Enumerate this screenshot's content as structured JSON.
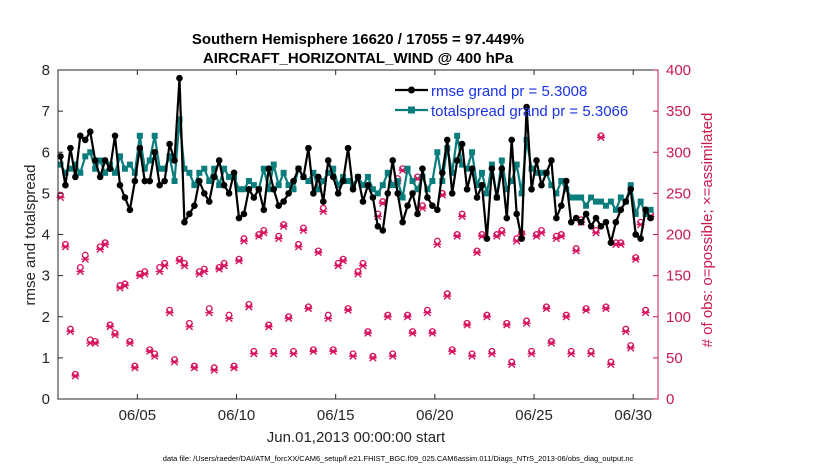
{
  "chart_data": {
    "type": "line",
    "title": "Southern Hemisphere 16620 / 17055 = 97.449%",
    "subtitle": "AIRCRAFT_HORIZONTAL_WIND @ 400 hPa",
    "xlabel": "Jun.01,2013 00:00:00 start",
    "ylabel_left": "rmse and totalspread",
    "ylabel_right": "# of obs: o=possible; ×=assimilated",
    "footer": "data file: /Users/raeder/DAI/ATM_forcXX/CAM6_setup/f.e21.FHIST_BGC.f09_025.CAM6assim.011/Diags_NTrS_2013-06/obs_diag_output.nc",
    "xlim": [
      1.0,
      31.25
    ],
    "ylim_left": [
      0,
      8
    ],
    "ylim_right": [
      0,
      400
    ],
    "left_ticks": [
      0,
      1,
      2,
      3,
      4,
      5,
      6,
      7,
      8
    ],
    "right_ticks": [
      0,
      50,
      100,
      150,
      200,
      250,
      300,
      350,
      400
    ],
    "x_ticks": [
      {
        "value": 5,
        "label": "06/05"
      },
      {
        "value": 10,
        "label": "06/10"
      },
      {
        "value": 15,
        "label": "06/15"
      },
      {
        "value": 20,
        "label": "06/20"
      },
      {
        "value": 25,
        "label": "06/25"
      },
      {
        "value": 30,
        "label": "06/30"
      }
    ],
    "colors": {
      "rmse": "#000000",
      "spread": "#0b7d7d",
      "obs": "#d6145f",
      "right_axis": "#c8194f",
      "legend_text": "#1a33e6"
    },
    "series": [
      {
        "name": "rmse grand pr = 5.3008",
        "style": "black-line-star",
        "x": [
          1.125,
          1.375,
          1.625,
          1.875,
          2.125,
          2.375,
          2.625,
          2.875,
          3.125,
          3.375,
          3.625,
          3.875,
          4.125,
          4.375,
          4.625,
          4.875,
          5.125,
          5.375,
          5.625,
          5.875,
          6.125,
          6.375,
          6.625,
          6.875,
          7.125,
          7.375,
          7.625,
          7.875,
          8.125,
          8.375,
          8.625,
          8.875,
          9.125,
          9.375,
          9.625,
          9.875,
          10.125,
          10.375,
          10.625,
          10.875,
          11.125,
          11.375,
          11.625,
          11.875,
          12.125,
          12.375,
          12.625,
          12.875,
          13.125,
          13.375,
          13.625,
          13.875,
          14.125,
          14.375,
          14.625,
          14.875,
          15.125,
          15.375,
          15.625,
          15.875,
          16.125,
          16.375,
          16.625,
          16.875,
          17.125,
          17.375,
          17.625,
          17.875,
          18.125,
          18.375,
          18.625,
          18.875,
          19.125,
          19.375,
          19.625,
          19.875,
          20.125,
          20.375,
          20.625,
          20.875,
          21.125,
          21.375,
          21.625,
          21.875,
          22.125,
          22.375,
          22.625,
          22.875,
          23.125,
          23.375,
          23.625,
          23.875,
          24.125,
          24.375,
          24.625,
          24.875,
          25.125,
          25.375,
          25.625,
          25.875,
          26.125,
          26.375,
          26.625,
          26.875,
          27.125,
          27.375,
          27.625,
          27.875,
          28.125,
          28.375,
          28.625,
          28.875,
          29.125,
          29.375,
          29.625,
          29.875,
          30.125,
          30.375,
          30.625,
          30.875
        ],
        "values": [
          5.9,
          5.2,
          6.1,
          5.4,
          6.4,
          6.3,
          6.5,
          5.8,
          5.4,
          5.8,
          5.6,
          6.4,
          5.2,
          4.9,
          4.6,
          5.3,
          6.1,
          5.3,
          5.3,
          6.0,
          5.2,
          5.3,
          6.2,
          5.8,
          7.8,
          4.3,
          4.5,
          4.7,
          5.3,
          5.0,
          4.8,
          5.4,
          5.8,
          5.2,
          5.0,
          5.5,
          4.4,
          4.5,
          5.1,
          4.9,
          5.1,
          4.6,
          5.6,
          5.1,
          4.7,
          4.8,
          5.0,
          5.3,
          5.6,
          5.4,
          6.1,
          5.0,
          5.4,
          4.8,
          5.8,
          5.4,
          5.0,
          5.3,
          6.1,
          5.1,
          5.4,
          4.8,
          5.2,
          4.9,
          4.2,
          4.1,
          5.0,
          5.8,
          5.0,
          4.3,
          4.7,
          5.0,
          4.5,
          5.6,
          4.9,
          4.7,
          4.6,
          5.5,
          6.3,
          5.0,
          5.8,
          6.2,
          5.1,
          5.6,
          4.9,
          5.2,
          3.9,
          5.6,
          4.9,
          5.6,
          4.4,
          6.3,
          4.5,
          3.9,
          7.1,
          5.1,
          5.8,
          5.2,
          5.5,
          5.8,
          4.4,
          4.7,
          5.3,
          4.3,
          4.4,
          4.3,
          4.5,
          4.2,
          4.4,
          4.2,
          4.3,
          3.8,
          4.3,
          4.6,
          4.8,
          5.1,
          4.0,
          3.9,
          4.6,
          4.4
        ]
      },
      {
        "name": "totalspread grand pr = 5.3066",
        "style": "teal-line-square",
        "x": [
          1.125,
          1.375,
          1.625,
          1.875,
          2.125,
          2.375,
          2.625,
          2.875,
          3.125,
          3.375,
          3.625,
          3.875,
          4.125,
          4.375,
          4.625,
          4.875,
          5.125,
          5.375,
          5.625,
          5.875,
          6.125,
          6.375,
          6.625,
          6.875,
          7.125,
          7.375,
          7.625,
          7.875,
          8.125,
          8.375,
          8.625,
          8.875,
          9.125,
          9.375,
          9.625,
          9.875,
          10.125,
          10.375,
          10.625,
          10.875,
          11.125,
          11.375,
          11.625,
          11.875,
          12.125,
          12.375,
          12.625,
          12.875,
          13.125,
          13.375,
          13.625,
          13.875,
          14.125,
          14.375,
          14.625,
          14.875,
          15.125,
          15.375,
          15.625,
          15.875,
          16.125,
          16.375,
          16.625,
          16.875,
          17.125,
          17.375,
          17.625,
          17.875,
          18.125,
          18.375,
          18.625,
          18.875,
          19.125,
          19.375,
          19.625,
          19.875,
          20.125,
          20.375,
          20.625,
          20.875,
          21.125,
          21.375,
          21.625,
          21.875,
          22.125,
          22.375,
          22.625,
          22.875,
          23.125,
          23.375,
          23.625,
          23.875,
          24.125,
          24.375,
          24.625,
          24.875,
          25.125,
          25.375,
          25.625,
          25.875,
          26.125,
          26.375,
          26.625,
          26.875,
          27.125,
          27.375,
          27.625,
          27.875,
          28.125,
          28.375,
          28.625,
          28.875,
          29.125,
          29.375,
          29.625,
          29.875,
          30.125,
          30.375,
          30.625,
          30.875
        ],
        "values": [
          5.7,
          5.5,
          5.6,
          5.7,
          5.5,
          5.9,
          6.0,
          5.6,
          5.8,
          5.5,
          5.7,
          5.5,
          5.9,
          5.6,
          5.7,
          5.5,
          6.4,
          5.6,
          5.8,
          6.4,
          5.6,
          5.6,
          5.9,
          5.3,
          6.8,
          5.6,
          5.5,
          5.2,
          5.5,
          5.6,
          5.3,
          5.6,
          5.2,
          5.6,
          5.4,
          5.4,
          5.1,
          5.1,
          5.3,
          5.2,
          5.1,
          5.6,
          5.1,
          5.7,
          5.2,
          5.5,
          5.2,
          5.1,
          5.6,
          5.4,
          5.3,
          5.5,
          5.1,
          5.3,
          5.5,
          5.6,
          5.2,
          5.4,
          5.3,
          5.2,
          5.4,
          5.2,
          5.4,
          5.1,
          5.0,
          5.2,
          5.5,
          5.2,
          5.3,
          4.9,
          5.6,
          5.3,
          5.1,
          5.4,
          5.1,
          5.3,
          6.0,
          5.3,
          6.1,
          5.5,
          6.4,
          5.7,
          5.6,
          6.0,
          5.2,
          5.5,
          5.0,
          5.7,
          4.9,
          5.8,
          5.1,
          5.3,
          5.7,
          5.0,
          6.3,
          5.6,
          5.5,
          5.5,
          5.5,
          5.2,
          5.0,
          5.3,
          5.1,
          4.9,
          4.9,
          4.9,
          4.7,
          4.9,
          4.8,
          4.8,
          4.7,
          4.8,
          4.6,
          4.9,
          4.8,
          5.2,
          4.5,
          4.8,
          4.5,
          4.6
        ]
      }
    ],
    "obs": {
      "possible": [
        248,
        188,
        85,
        30,
        160,
        175,
        72,
        70,
        185,
        190,
        90,
        80,
        138,
        140,
        70,
        40,
        152,
        155,
        60,
        55,
        160,
        165,
        108,
        48,
        170,
        165,
        92,
        40,
        155,
        158,
        110,
        38,
        160,
        165,
        102,
        40,
        170,
        195,
        115,
        58,
        200,
        205,
        90,
        58,
        198,
        212,
        100,
        58,
        188,
        208,
        112,
        60,
        180,
        232,
        102,
        60,
        165,
        170,
        110,
        55,
        155,
        165,
        82,
        52,
        225,
        240,
        102,
        55,
        268,
        280,
        102,
        82,
        270,
        235,
        108,
        82,
        192,
        250,
        128,
        60,
        200,
        225,
        92,
        55,
        180,
        200,
        102,
        58,
        200,
        205,
        92,
        45,
        195,
        202,
        95,
        58,
        200,
        205,
        112,
        70,
        198,
        200,
        102,
        58,
        183,
        218,
        110,
        58,
        205,
        320,
        112,
        45,
        190,
        190,
        85,
        65,
        172,
        215,
        108,
        225
      ],
      "assimilated": [
        245,
        185,
        82,
        28,
        155,
        170,
        68,
        68,
        182,
        188,
        88,
        78,
        135,
        138,
        68,
        38,
        150,
        152,
        58,
        52,
        155,
        162,
        105,
        45,
        168,
        162,
        88,
        38,
        152,
        155,
        105,
        35,
        158,
        162,
        98,
        38,
        168,
        192,
        112,
        55,
        198,
        202,
        88,
        55,
        195,
        210,
        98,
        55,
        185,
        205,
        110,
        58,
        178,
        228,
        98,
        58,
        162,
        168,
        108,
        52,
        152,
        162,
        80,
        50,
        222,
        238,
        100,
        52,
        265,
        278,
        100,
        80,
        268,
        232,
        105,
        80,
        188,
        248,
        125,
        58,
        198,
        222,
        90,
        52,
        178,
        198,
        100,
        55,
        198,
        202,
        90,
        42,
        192,
        200,
        92,
        55,
        198,
        202,
        110,
        68,
        195,
        198,
        100,
        55,
        180,
        215,
        108,
        55,
        202,
        318,
        110,
        42,
        188,
        188,
        82,
        62,
        170,
        212,
        105,
        222
      ]
    },
    "legend": {
      "placement": "top-right",
      "entries": [
        "rmse grand pr = 5.3008",
        "totalspread grand pr = 5.3066"
      ]
    }
  }
}
